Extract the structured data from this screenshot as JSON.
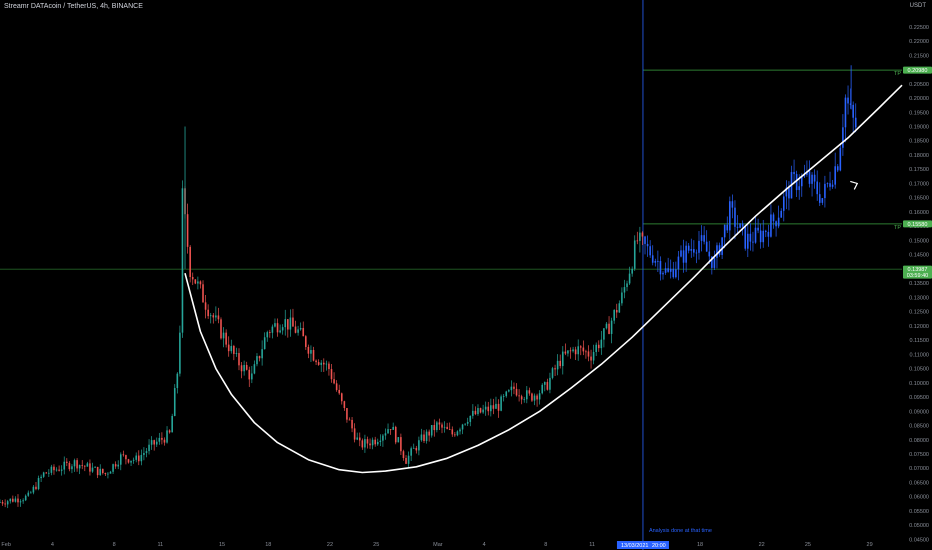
{
  "header": {
    "title": "Streamr DATAcoin / TetherUS, 4h, BINANCE",
    "unit": "USDT"
  },
  "colors": {
    "background": "#000000",
    "up": "#26a69a",
    "down": "#ef5350",
    "post_analysis": "#2962ff",
    "level_line": "#2e7d32",
    "level_tag": "#4caf50",
    "curve": "#ffffff",
    "vline": "#2962ff"
  },
  "annotations": {
    "tp1": "TP",
    "tp2": "TP",
    "analysis_note": "Analysis done at that time",
    "analysis_date": "13/03/2021",
    "analysis_time": "20:00",
    "price_tag_top": "0.20980",
    "price_tag_mid": "0.15580",
    "price_tag_current": "0.13987",
    "price_tag_countdown": "03:59:40"
  },
  "chart_data": {
    "type": "candlestick",
    "title": "Streamr DATAcoin / TetherUS, 4h, BINANCE",
    "ylabel": "USDT",
    "ylim": [
      0.0455,
      0.2295
    ],
    "yticks": [
      0.225,
      0.22,
      0.215,
      0.21,
      0.205,
      0.2,
      0.195,
      0.19,
      0.185,
      0.18,
      0.175,
      0.17,
      0.165,
      0.16,
      0.155,
      0.15,
      0.145,
      0.14,
      0.135,
      0.13,
      0.125,
      0.12,
      0.115,
      0.11,
      0.105,
      0.1,
      0.095,
      0.09,
      0.085,
      0.08,
      0.075,
      0.07,
      0.065,
      0.06,
      0.055,
      0.05,
      0.045
    ],
    "ytick_labels": [
      "0.22500",
      "0.22000",
      "0.21500",
      "0.21000",
      "0.20500",
      "0.20000",
      "0.19500",
      "0.19000",
      "0.18500",
      "0.18000",
      "0.17500",
      "0.17000",
      "0.16500",
      "0.16000",
      "0.15500",
      "0.15000",
      "0.14500",
      "0.14000",
      "0.13500",
      "0.13000",
      "0.12500",
      "0.12000",
      "0.11500",
      "0.11000",
      "0.10500",
      "0.10000",
      "0.09500",
      "0.09000",
      "0.08500",
      "0.08000",
      "0.07500",
      "0.07000",
      "0.06500",
      "0.06000",
      "0.05500",
      "0.05000",
      "0.04500"
    ],
    "xlim_days": [
      0,
      58.5
    ],
    "xticks": [
      {
        "label": "Feb",
        "day": 0.4
      },
      {
        "label": "4",
        "day": 3.4
      },
      {
        "label": "8",
        "day": 7.4
      },
      {
        "label": "11",
        "day": 10.4
      },
      {
        "label": "15",
        "day": 14.4
      },
      {
        "label": "18",
        "day": 17.4
      },
      {
        "label": "22",
        "day": 21.4
      },
      {
        "label": "25",
        "day": 24.4
      },
      {
        "label": "Mar",
        "day": 28.4
      },
      {
        "label": "4",
        "day": 31.4
      },
      {
        "label": "8",
        "day": 35.4
      },
      {
        "label": "11",
        "day": 38.4
      },
      {
        "label": "18",
        "day": 45.4
      },
      {
        "label": "22",
        "day": 49.4
      },
      {
        "label": "25",
        "day": 52.4
      },
      {
        "label": "29",
        "day": 56.4
      }
    ],
    "analysis_day": 41.7,
    "levels": {
      "tp_top": 0.2098,
      "tp_mid": 0.1558,
      "entry": 0.1399
    },
    "price_path": [
      [
        0,
        0.058
      ],
      [
        2,
        0.06
      ],
      [
        3,
        0.068
      ],
      [
        5,
        0.072
      ],
      [
        6,
        0.07
      ],
      [
        7,
        0.068
      ],
      [
        8,
        0.074
      ],
      [
        9,
        0.073
      ],
      [
        10,
        0.078
      ],
      [
        11.2,
        0.082
      ],
      [
        11.8,
        0.11
      ],
      [
        12.0,
        0.165
      ],
      [
        12.5,
        0.14
      ],
      [
        13.5,
        0.128
      ],
      [
        14.5,
        0.118
      ],
      [
        15.5,
        0.108
      ],
      [
        16.5,
        0.102
      ],
      [
        17.5,
        0.118
      ],
      [
        18.5,
        0.122
      ],
      [
        19.5,
        0.118
      ],
      [
        20.5,
        0.11
      ],
      [
        21.5,
        0.105
      ],
      [
        22.5,
        0.09
      ],
      [
        23.5,
        0.078
      ],
      [
        24.5,
        0.08
      ],
      [
        25.5,
        0.085
      ],
      [
        26.5,
        0.073
      ],
      [
        27.5,
        0.08
      ],
      [
        28.5,
        0.085
      ],
      [
        29.5,
        0.082
      ],
      [
        30.5,
        0.088
      ],
      [
        31.5,
        0.09
      ],
      [
        32.5,
        0.092
      ],
      [
        33.5,
        0.098
      ],
      [
        34.5,
        0.095
      ],
      [
        35.5,
        0.098
      ],
      [
        36.5,
        0.108
      ],
      [
        37.5,
        0.112
      ],
      [
        38.5,
        0.11
      ],
      [
        39.5,
        0.118
      ],
      [
        40.5,
        0.13
      ],
      [
        41.5,
        0.15
      ],
      [
        42.5,
        0.145
      ],
      [
        43.5,
        0.138
      ],
      [
        44.5,
        0.145
      ],
      [
        45.5,
        0.15
      ],
      [
        46.5,
        0.142
      ],
      [
        47.5,
        0.16
      ],
      [
        48.5,
        0.15
      ],
      [
        49.5,
        0.152
      ],
      [
        50.5,
        0.158
      ],
      [
        51.5,
        0.17
      ],
      [
        52.5,
        0.172
      ],
      [
        53.5,
        0.165
      ],
      [
        54.5,
        0.178
      ],
      [
        55.0,
        0.2
      ],
      [
        55.6,
        0.19
      ]
    ],
    "curve": [
      [
        12.0,
        0.1385
      ],
      [
        13.0,
        0.118
      ],
      [
        14.0,
        0.105
      ],
      [
        15.0,
        0.096
      ],
      [
        16.5,
        0.086
      ],
      [
        18.0,
        0.079
      ],
      [
        20.0,
        0.073
      ],
      [
        22.0,
        0.0695
      ],
      [
        23.5,
        0.0685
      ],
      [
        25.0,
        0.069
      ],
      [
        27.0,
        0.0705
      ],
      [
        29.0,
        0.0735
      ],
      [
        31.0,
        0.078
      ],
      [
        33.0,
        0.0835
      ],
      [
        35.0,
        0.09
      ],
      [
        37.0,
        0.098
      ],
      [
        39.0,
        0.1065
      ],
      [
        41.0,
        0.116
      ],
      [
        43.0,
        0.1265
      ],
      [
        45.0,
        0.137
      ],
      [
        47.0,
        0.148
      ],
      [
        49.0,
        0.1585
      ],
      [
        51.0,
        0.168
      ],
      [
        53.0,
        0.177
      ],
      [
        55.0,
        0.186
      ],
      [
        57.0,
        0.1965
      ],
      [
        58.5,
        0.2045
      ]
    ],
    "arrow_point": [
      55.6,
      0.17
    ]
  }
}
